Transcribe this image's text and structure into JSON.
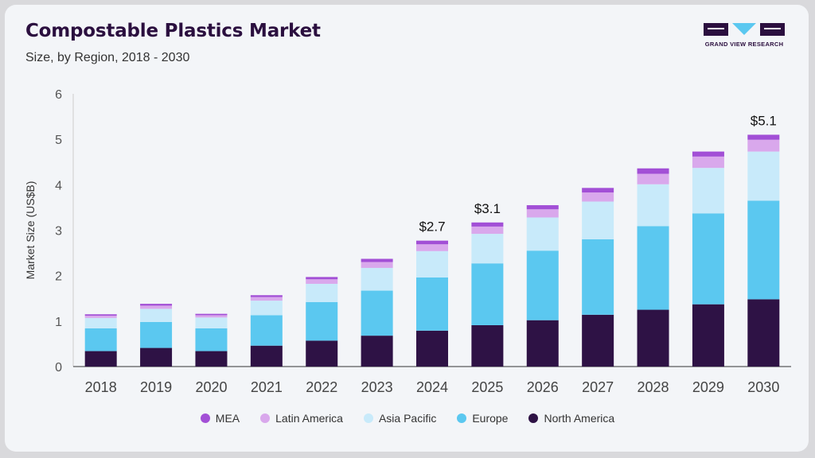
{
  "header": {
    "title": "Compostable Plastics Market",
    "subtitle": "Size, by Region, 2018 - 2030"
  },
  "logo": {
    "text": "GRAND VIEW RESEARCH",
    "color": "#2b0f3f",
    "accent": "#5bc8f0"
  },
  "chart_data": {
    "type": "bar",
    "stacked": true,
    "categories": [
      "2018",
      "2019",
      "2020",
      "2021",
      "2022",
      "2023",
      "2024",
      "2025",
      "2026",
      "2027",
      "2028",
      "2029",
      "2030"
    ],
    "ylabel": "Market Size (US$B)",
    "xlabel": "",
    "ylim": [
      0,
      6
    ],
    "yticks": [
      0,
      1,
      2,
      3,
      4,
      5,
      6
    ],
    "grid": false,
    "legend_position": "bottom",
    "series": [
      {
        "name": "North America",
        "color": "#2e1245",
        "values": [
          0.34,
          0.41,
          0.34,
          0.46,
          0.57,
          0.68,
          0.79,
          0.91,
          1.02,
          1.14,
          1.25,
          1.37,
          1.48
        ]
      },
      {
        "name": "Europe",
        "color": "#5bc8f0",
        "values": [
          0.5,
          0.57,
          0.5,
          0.67,
          0.85,
          0.99,
          1.17,
          1.36,
          1.53,
          1.66,
          1.84,
          2.0,
          2.17
        ]
      },
      {
        "name": "Asia Pacific",
        "color": "#c8eafa",
        "values": [
          0.23,
          0.29,
          0.24,
          0.32,
          0.4,
          0.5,
          0.58,
          0.65,
          0.73,
          0.83,
          0.92,
          1.0,
          1.08
        ]
      },
      {
        "name": "Latin America",
        "color": "#d9a8ec",
        "values": [
          0.05,
          0.07,
          0.05,
          0.08,
          0.1,
          0.13,
          0.15,
          0.16,
          0.18,
          0.2,
          0.23,
          0.25,
          0.26
        ]
      },
      {
        "name": "MEA",
        "color": "#a24fd6",
        "values": [
          0.03,
          0.04,
          0.03,
          0.04,
          0.05,
          0.07,
          0.08,
          0.09,
          0.09,
          0.1,
          0.12,
          0.11,
          0.11
        ]
      }
    ],
    "annotations": [
      {
        "category": "2024",
        "label": "$2.7"
      },
      {
        "category": "2025",
        "label": "$3.1"
      },
      {
        "category": "2030",
        "label": "$5.1"
      }
    ],
    "legend_order": [
      "MEA",
      "Latin America",
      "Asia Pacific",
      "Europe",
      "North America"
    ]
  }
}
